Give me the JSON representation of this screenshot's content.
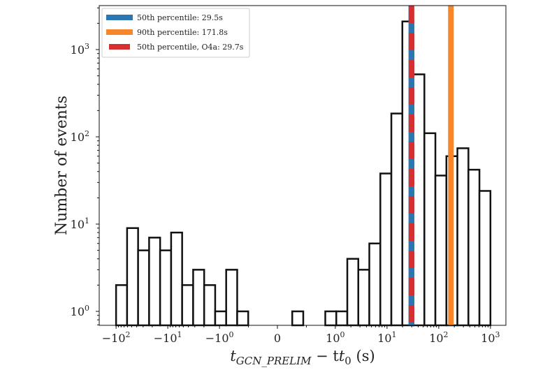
{
  "chart_data": {
    "type": "bar",
    "subtype": "histogram",
    "xlabel_main": "t",
    "xlabel_sub": "GCN_PRELIM",
    "xlabel_rest": " − t",
    "xlabel_sub2": "0",
    "xlabel_unit": " (s)",
    "ylabel": "Number of events",
    "xscale": "symlog",
    "yscale": "log",
    "xlim": [
      -100,
      1000
    ],
    "ylim": [
      0.7,
      3200
    ],
    "x_tick_labels": [
      {
        "value": -100,
        "base": "−10",
        "exp": "2"
      },
      {
        "value": -10,
        "base": "−10",
        "exp": "1"
      },
      {
        "value": -1,
        "base": "−10",
        "exp": "0"
      },
      {
        "value": 0,
        "base": "0",
        "exp": ""
      },
      {
        "value": 1,
        "base": "10",
        "exp": "0"
      },
      {
        "value": 10,
        "base": "10",
        "exp": "1"
      },
      {
        "value": 100,
        "base": "10",
        "exp": "2"
      },
      {
        "value": 1000,
        "base": "10",
        "exp": "3"
      }
    ],
    "y_tick_labels": [
      {
        "value": 1,
        "base": "10",
        "exp": "0"
      },
      {
        "value": 10,
        "base": "10",
        "exp": "1"
      },
      {
        "value": 100,
        "base": "10",
        "exp": "2"
      },
      {
        "value": 1000,
        "base": "10",
        "exp": "3"
      }
    ],
    "bin_count": 34,
    "counts": [
      2,
      9,
      5,
      7,
      5,
      8,
      2,
      3,
      2,
      1,
      3,
      1,
      0,
      0,
      0,
      0,
      1,
      0,
      0,
      1,
      1,
      4,
      3,
      6,
      38,
      185,
      2100,
      520,
      110,
      36,
      60,
      74,
      42,
      24
    ],
    "vlines": [
      {
        "label": "50th percentile: 29.5s",
        "x": 29.5,
        "color": "#2a77b4",
        "style": "solid"
      },
      {
        "label": "90th percentile: 171.8s",
        "x": 171.8,
        "color": "#f5862a",
        "style": "solid"
      },
      {
        "label": "50th percentile, O4a: 29.7s",
        "x": 29.7,
        "color": "#d62f2f",
        "style": "dashed"
      }
    ],
    "legend_position": "top-left",
    "grid": false
  }
}
